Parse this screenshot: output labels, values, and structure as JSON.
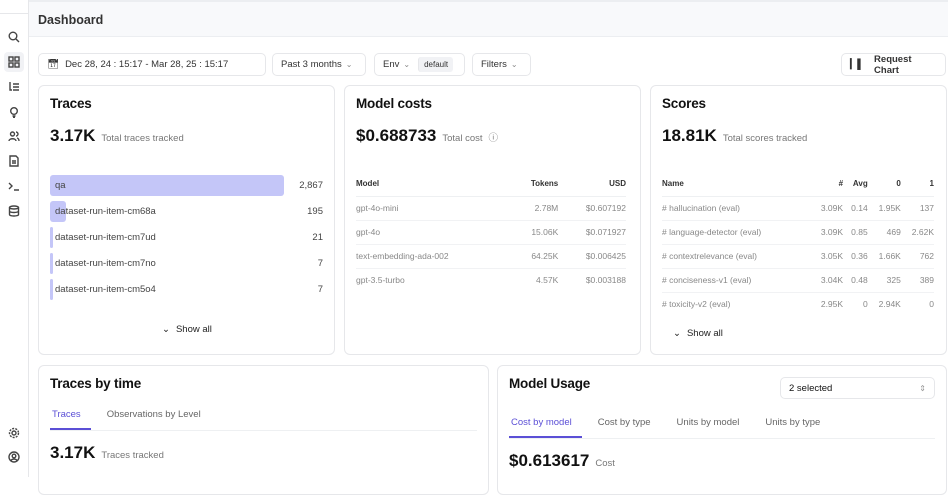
{
  "header": {
    "title": "Dashboard"
  },
  "toolbar": {
    "date_range": "Dec 28, 24 : 15:17 - Mar 28, 25 : 15:17",
    "period": "Past 3 months",
    "env_label": "Env",
    "env_value": "default",
    "filters": "Filters",
    "request_chart": "Request Chart"
  },
  "traces": {
    "title": "Traces",
    "total": "3.17K",
    "total_label": "Total traces tracked",
    "bar_color": "#c4c6f8",
    "items": [
      {
        "label": "qa",
        "value": "2,867",
        "count": 2867
      },
      {
        "label": "dataset-run-item-cm68a",
        "value": "195",
        "count": 195
      },
      {
        "label": "dataset-run-item-cm7ud",
        "value": "21",
        "count": 21
      },
      {
        "label": "dataset-run-item-cm7no",
        "value": "7",
        "count": 7
      },
      {
        "label": "dataset-run-item-cm5o4",
        "value": "7",
        "count": 7
      }
    ],
    "show_all": "Show all"
  },
  "model_costs": {
    "title": "Model costs",
    "total": "$0.688733",
    "total_label": "Total cost",
    "columns": [
      "Model",
      "Tokens",
      "USD"
    ],
    "rows": [
      [
        "gpt-4o-mini",
        "2.78M",
        "$0.607192"
      ],
      [
        "gpt-4o",
        "15.06K",
        "$0.071927"
      ],
      [
        "text-embedding-ada-002",
        "64.25K",
        "$0.006425"
      ],
      [
        "gpt-3.5-turbo",
        "4.57K",
        "$0.003188"
      ]
    ]
  },
  "scores": {
    "title": "Scores",
    "total": "18.81K",
    "total_label": "Total scores tracked",
    "columns": [
      "Name",
      "#",
      "Avg",
      "0",
      "1"
    ],
    "rows": [
      [
        "# hallucination (eval)",
        "3.09K",
        "0.14",
        "1.95K",
        "137"
      ],
      [
        "# language-detector (eval)",
        "3.09K",
        "0.85",
        "469",
        "2.62K"
      ],
      [
        "# contextrelevance (eval)",
        "3.05K",
        "0.36",
        "1.66K",
        "762"
      ],
      [
        "# conciseness-v1 (eval)",
        "3.04K",
        "0.48",
        "325",
        "389"
      ],
      [
        "# toxicity-v2 (eval)",
        "2.95K",
        "0",
        "2.94K",
        "0"
      ]
    ],
    "show_all": "Show all"
  },
  "traces_by_time": {
    "title": "Traces by time",
    "tabs": [
      "Traces",
      "Observations by Level"
    ],
    "total": "3.17K",
    "total_label": "Traces tracked"
  },
  "model_usage": {
    "title": "Model Usage",
    "select": "2 selected",
    "tabs": [
      "Cost by model",
      "Cost by type",
      "Units by model",
      "Units by type"
    ],
    "total": "$0.613617",
    "total_label": "Cost"
  },
  "accent_color": "#5b4fd6"
}
